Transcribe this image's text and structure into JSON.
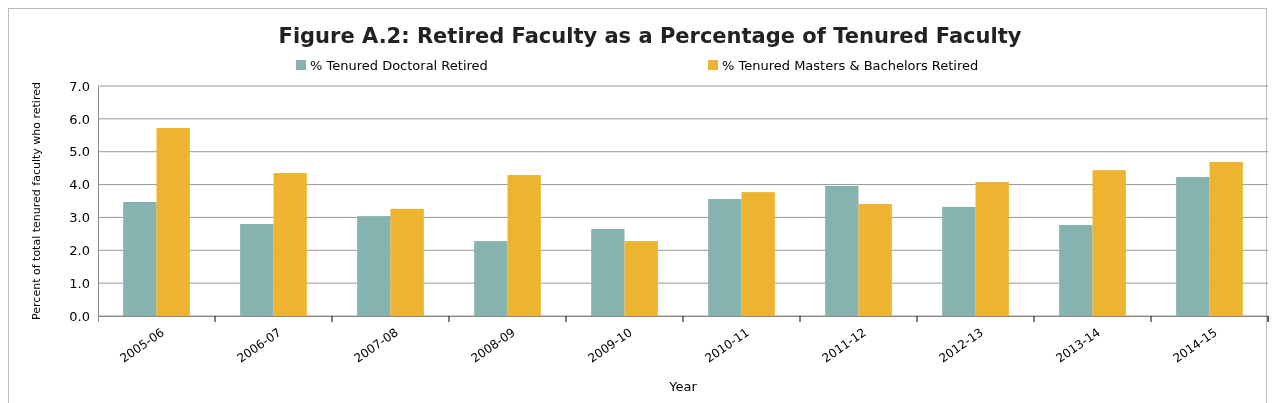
{
  "chart_data": {
    "type": "bar",
    "title": "Figure A.2: Retired Faculty as a Percentage of Tenured Faculty",
    "xlabel": "Year",
    "ylabel": "Percent of total tenured faculty who retired",
    "categories": [
      "2005-06",
      "2006-07",
      "2007-08",
      "2008-09",
      "2009-10",
      "2010-11",
      "2011-12",
      "2012-13",
      "2013-14",
      "2014-15"
    ],
    "series": [
      {
        "name": "% Tenured Doctoral Retired",
        "color": "#86b3b0",
        "values": [
          3.47,
          2.8,
          3.04,
          2.28,
          2.65,
          3.56,
          3.96,
          3.32,
          2.77,
          4.23
        ]
      },
      {
        "name": "% Tenured Masters & Bachelors Retired",
        "color": "#ecb430",
        "values": [
          5.72,
          4.35,
          3.26,
          4.29,
          2.28,
          3.77,
          3.41,
          4.08,
          4.44,
          4.69
        ]
      }
    ],
    "ylim": [
      0,
      7
    ],
    "yticks": [
      {
        "value": 0,
        "label": "0.0"
      },
      {
        "value": 1,
        "label": "1.0"
      },
      {
        "value": 2,
        "label": "2.0"
      },
      {
        "value": 3,
        "label": "3.0"
      },
      {
        "value": 4,
        "label": "4.0"
      },
      {
        "value": 5,
        "label": "5.0"
      },
      {
        "value": 6,
        "label": "6.0"
      },
      {
        "value": 7,
        "label": "7.0"
      }
    ],
    "grid": "y",
    "legend": "top"
  }
}
